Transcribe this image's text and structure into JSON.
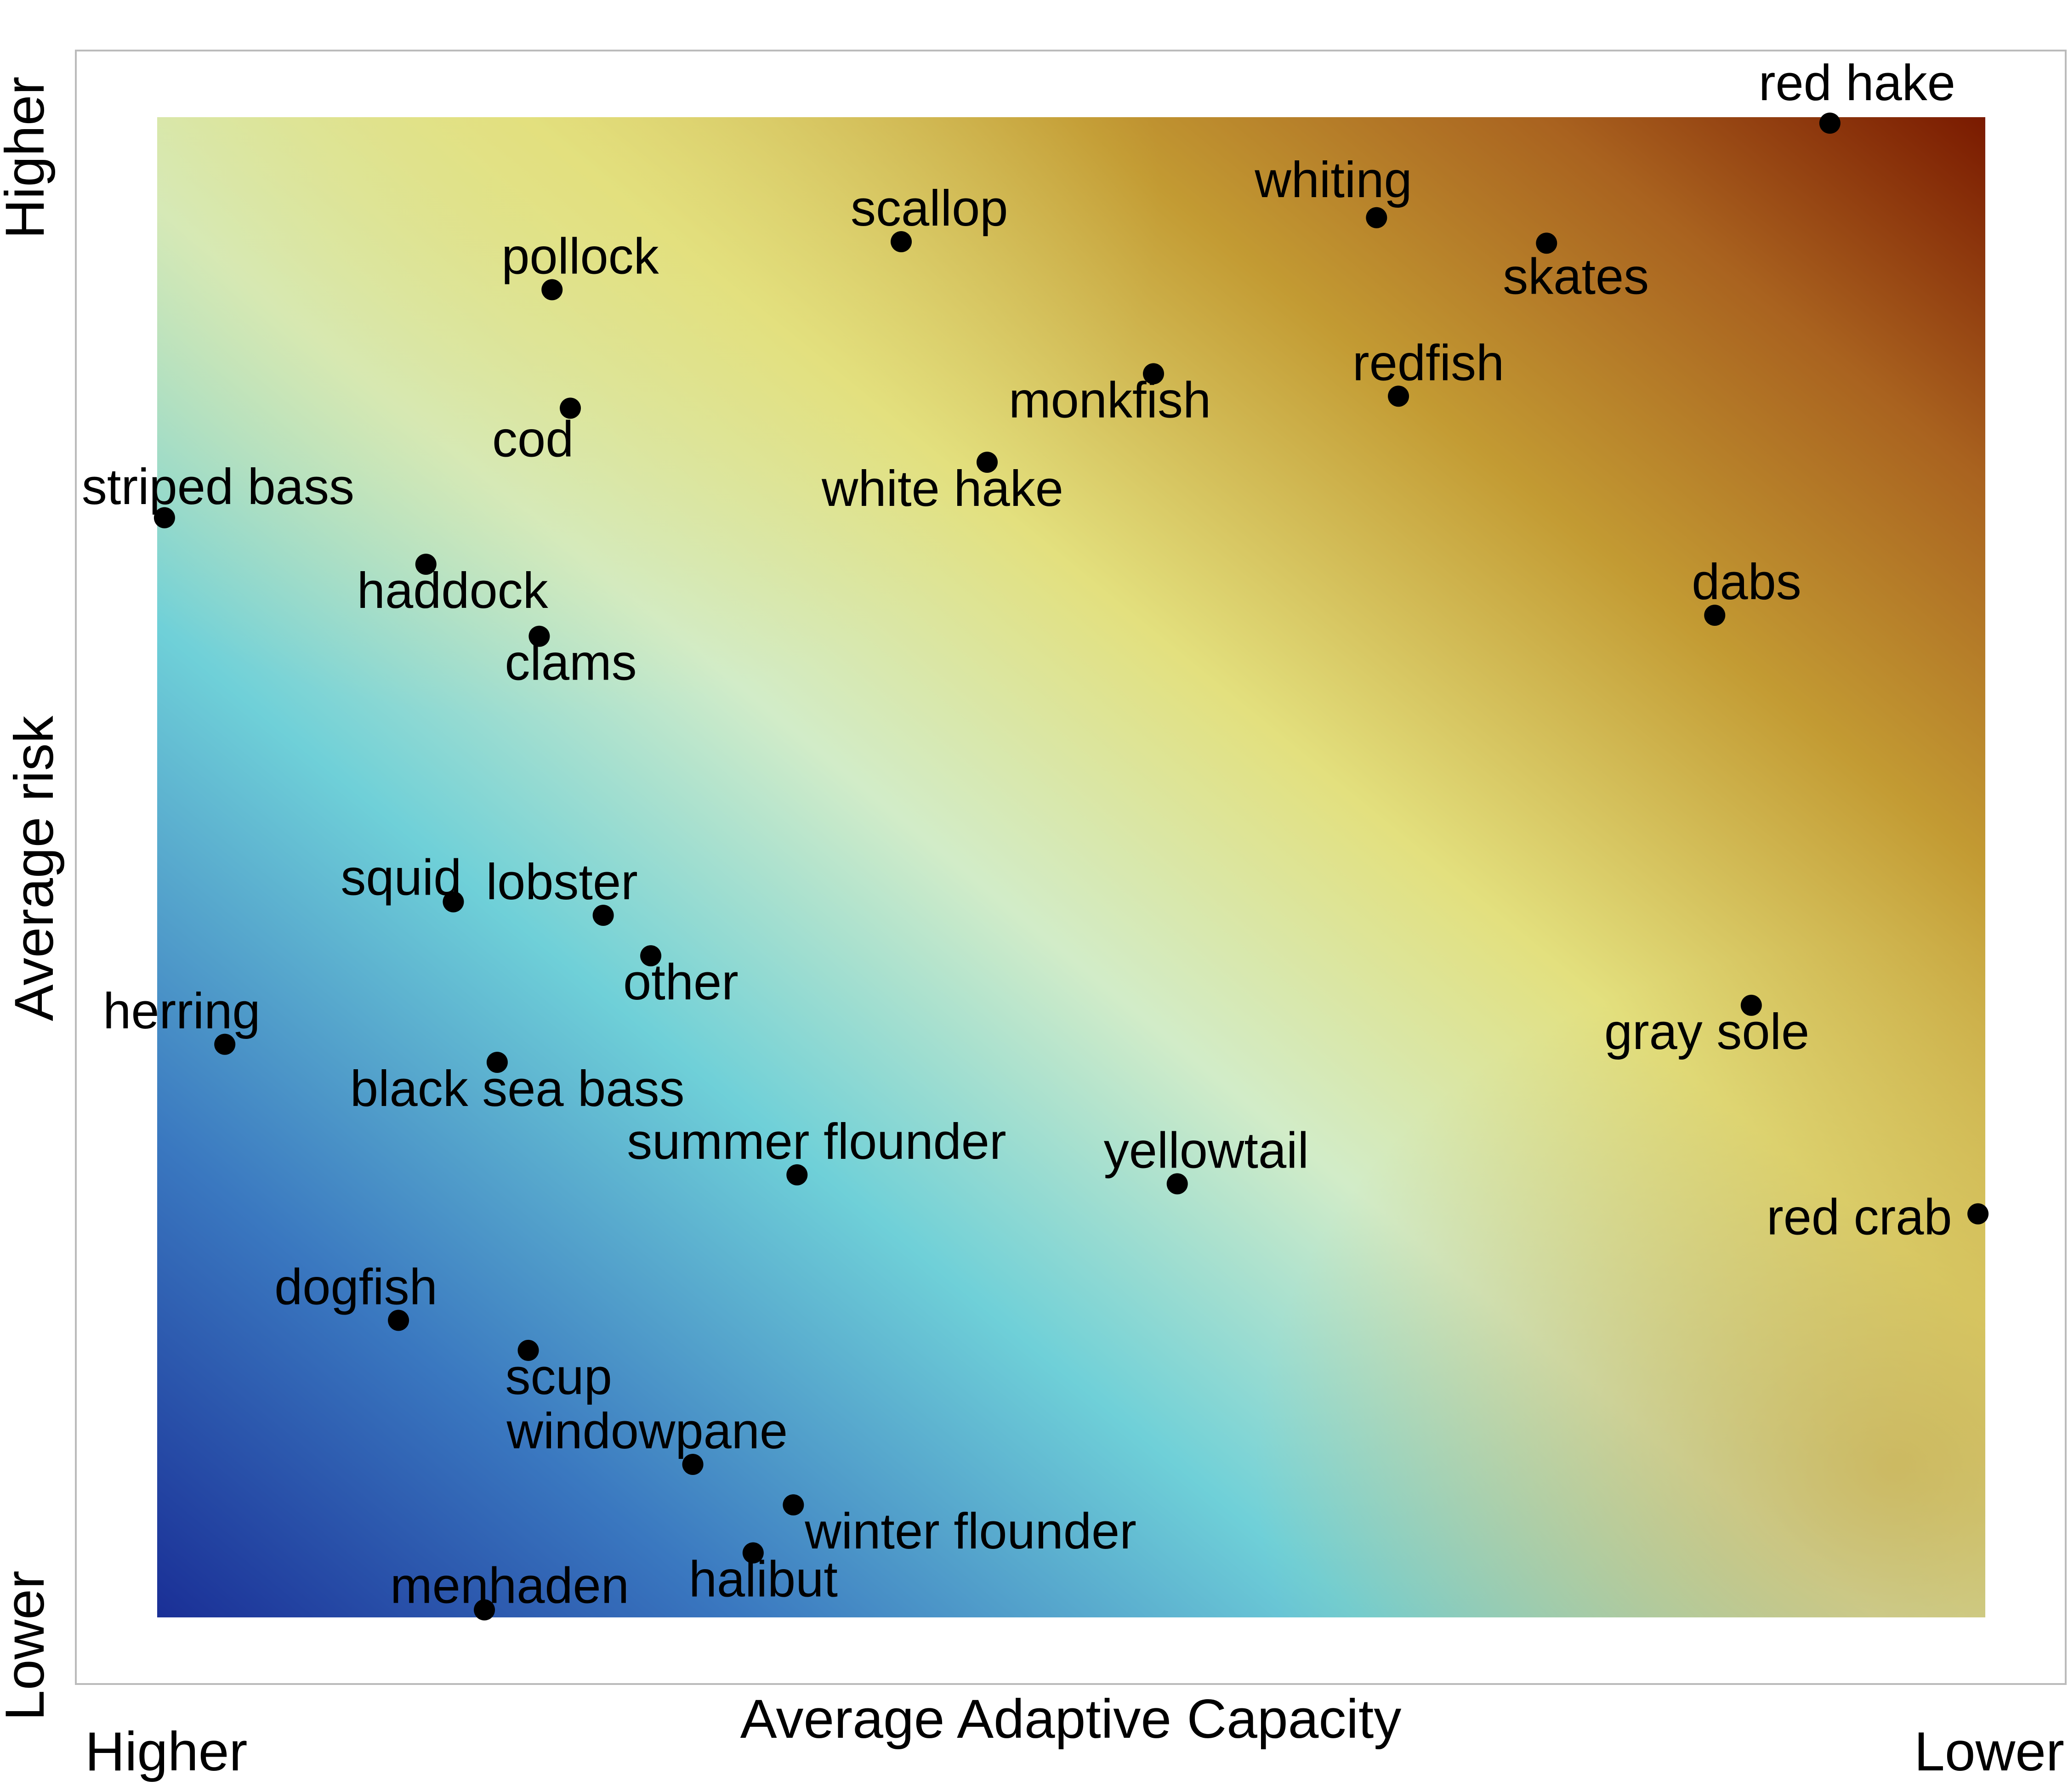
{
  "chart_data": {
    "type": "scatter",
    "title": "",
    "xlabel": "Average Adaptive Capacity",
    "ylabel": "Average risk",
    "x_end_labels": {
      "low_end": "Higher",
      "high_end": "Lower"
    },
    "y_end_labels": {
      "low_end": "Lower",
      "high_end": "Higher"
    },
    "xlim": [
      0,
      1
    ],
    "ylim": [
      0,
      1
    ],
    "grid": false,
    "legend": "none",
    "background_gradient": {
      "description": "bivariate color field: low risk + high adaptive capacity = blue, high risk + low adaptive capacity = dark red",
      "colors": [
        "#1a2f96",
        "#3a78c0",
        "#6fd0d8",
        "#d2ecc8",
        "#e3e07e",
        "#c39b33",
        "#a9621f",
        "#7a1a00"
      ]
    },
    "point_color": "#000000",
    "points": [
      {
        "name": "red hake",
        "x": 0.915,
        "y": 0.996
      },
      {
        "name": "whiting",
        "x": 0.667,
        "y": 0.933
      },
      {
        "name": "skates",
        "x": 0.76,
        "y": 0.916
      },
      {
        "name": "scallop",
        "x": 0.407,
        "y": 0.917
      },
      {
        "name": "pollock",
        "x": 0.216,
        "y": 0.885
      },
      {
        "name": "monkfish",
        "x": 0.545,
        "y": 0.829
      },
      {
        "name": "redfish",
        "x": 0.679,
        "y": 0.814
      },
      {
        "name": "cod",
        "x": 0.226,
        "y": 0.806
      },
      {
        "name": "white hake",
        "x": 0.454,
        "y": 0.77
      },
      {
        "name": "striped bass",
        "x": 0.004,
        "y": 0.733
      },
      {
        "name": "haddock",
        "x": 0.147,
        "y": 0.702
      },
      {
        "name": "dabs",
        "x": 0.852,
        "y": 0.668
      },
      {
        "name": "clams",
        "x": 0.209,
        "y": 0.654
      },
      {
        "name": "squid",
        "x": 0.162,
        "y": 0.477
      },
      {
        "name": "lobster",
        "x": 0.244,
        "y": 0.468
      },
      {
        "name": "other",
        "x": 0.27,
        "y": 0.441
      },
      {
        "name": "gray sole",
        "x": 0.872,
        "y": 0.408
      },
      {
        "name": "herring",
        "x": 0.037,
        "y": 0.382
      },
      {
        "name": "black sea bass",
        "x": 0.186,
        "y": 0.37
      },
      {
        "name": "summer flounder",
        "x": 0.35,
        "y": 0.295
      },
      {
        "name": "yellowtail",
        "x": 0.558,
        "y": 0.289
      },
      {
        "name": "red crab",
        "x": 0.996,
        "y": 0.269
      },
      {
        "name": "dogfish",
        "x": 0.132,
        "y": 0.198
      },
      {
        "name": "scup",
        "x": 0.203,
        "y": 0.178
      },
      {
        "name": "windowpane",
        "x": 0.293,
        "y": 0.102
      },
      {
        "name": "winter flounder",
        "x": 0.348,
        "y": 0.075
      },
      {
        "name": "halibut",
        "x": 0.326,
        "y": 0.043
      },
      {
        "name": "menhaden",
        "x": 0.179,
        "y": 0.005
      }
    ]
  }
}
